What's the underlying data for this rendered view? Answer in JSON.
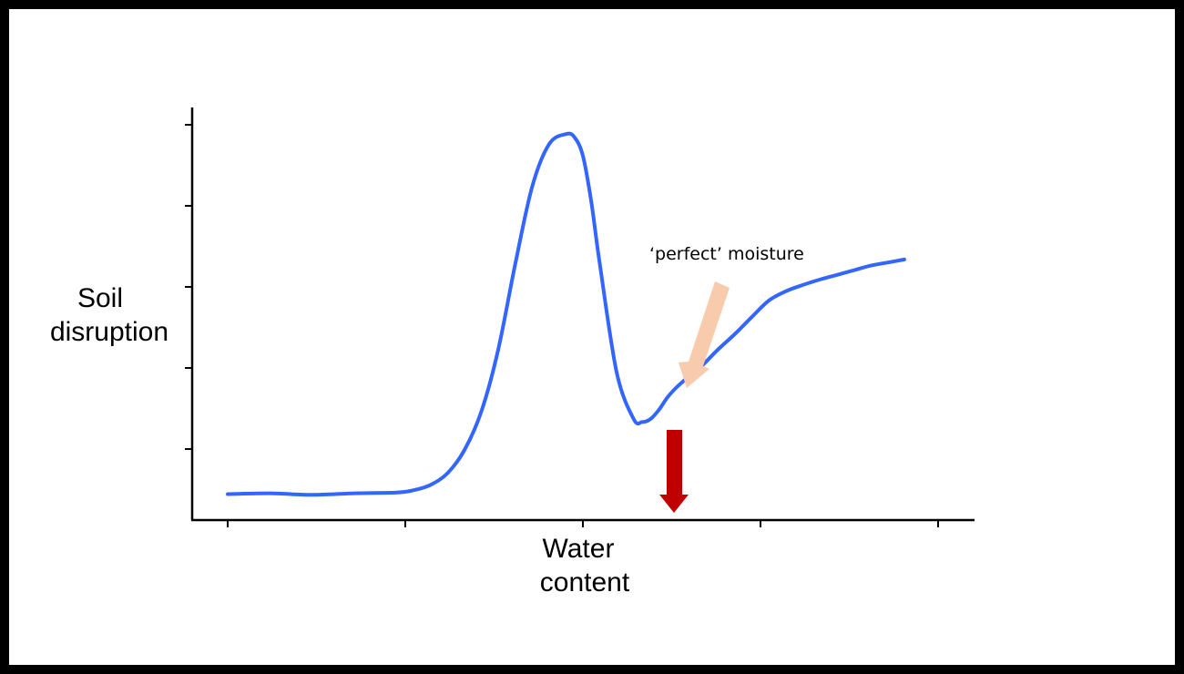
{
  "chart_data": {
    "type": "line",
    "title": "",
    "xlabel_lines": [
      "Water",
      "content"
    ],
    "ylabel_lines": [
      "Soil",
      "disruption"
    ],
    "xlim": [
      0,
      4.2
    ],
    "ylim": [
      0,
      5
    ],
    "x_tick_count": 5,
    "y_tick_count": 5,
    "grid": false,
    "series": [
      {
        "color": "#3366ff",
        "x": [
          0.0,
          0.25,
          0.5,
          0.75,
          1.0,
          1.1,
          1.2,
          1.3,
          1.4,
          1.5,
          1.6,
          1.7,
          1.8,
          1.9,
          2.0,
          2.05,
          2.1,
          2.15,
          2.2,
          2.3,
          2.4,
          2.45,
          2.5,
          2.55,
          2.6,
          2.65,
          2.7,
          2.8,
          2.9,
          3.0,
          3.1,
          3.2,
          3.3,
          3.4,
          3.5,
          3.6,
          3.7,
          3.8,
          3.9,
          4.0
        ],
        "y": [
          0.23,
          0.24,
          0.22,
          0.24,
          0.25,
          0.28,
          0.35,
          0.5,
          0.8,
          1.3,
          2.1,
          3.2,
          4.2,
          4.75,
          4.88,
          4.84,
          4.6,
          4.0,
          3.2,
          1.8,
          1.2,
          1.16,
          1.2,
          1.32,
          1.48,
          1.6,
          1.7,
          1.88,
          2.1,
          2.3,
          2.52,
          2.73,
          2.85,
          2.93,
          3.0,
          3.06,
          3.12,
          3.18,
          3.22,
          3.26
        ]
      }
    ],
    "annotations": [
      {
        "text": "‘perfect’ moisture",
        "color": "#f8cbad"
      },
      {
        "text": "",
        "color": "#c00000"
      }
    ]
  }
}
